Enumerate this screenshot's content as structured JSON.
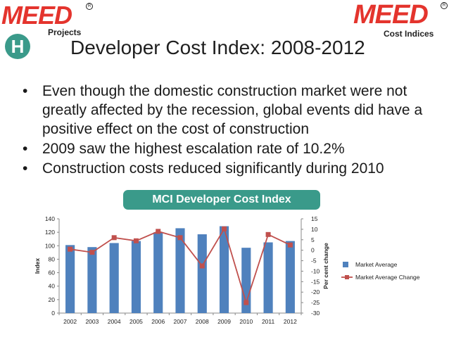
{
  "header": {
    "left_logo": "MEED",
    "left_logo_sub": "Projects",
    "right_logo": "MEED",
    "right_logo_sub": "Cost Indices",
    "badge": "H",
    "registered_mark": "R",
    "title": "Developer Cost Index: 2008-2012"
  },
  "bullets": [
    "Even though the domestic construction market were not greatly affected by the recession, global events did have a positive effect on the cost of construction",
    "2009 saw the highest escalation rate of 10.2%",
    "Construction costs reduced significantly during 2010"
  ],
  "bullet_symbol": "•",
  "colors": {
    "accent": "#3a9a8a",
    "brand_red": "#e4342d",
    "bar": "#4f81bd",
    "line": "#c0504d"
  },
  "chart_data": {
    "type": "bar",
    "title": "MCI Developer Cost Index",
    "categories": [
      "2002",
      "2003",
      "2004",
      "2005",
      "2006",
      "2007",
      "2008",
      "2009",
      "2010",
      "2011",
      "2012"
    ],
    "series": [
      {
        "name": "Market Average",
        "axis": "left",
        "type": "bar",
        "values": [
          101,
          98,
          104,
          107,
          120,
          126,
          117,
          129,
          97,
          105,
          107
        ]
      },
      {
        "name": "Market Average Change",
        "axis": "right",
        "type": "line",
        "values": [
          0.5,
          -1,
          6,
          4.5,
          9,
          6,
          -7.5,
          10.2,
          -25,
          7.5,
          2.5
        ]
      }
    ],
    "ylabel": "Index",
    "ylabel_right": "Per cent change",
    "ylim": [
      0,
      140
    ],
    "ylim_right": [
      -30,
      15
    ],
    "yticks": [
      "0",
      "20",
      "40",
      "60",
      "80",
      "100",
      "120",
      "140"
    ],
    "yticks_right": [
      "-30",
      "-25",
      "-20",
      "-15",
      "-10",
      "-5",
      "0",
      "5",
      "10",
      "15"
    ],
    "grid": false,
    "legend": "right"
  }
}
